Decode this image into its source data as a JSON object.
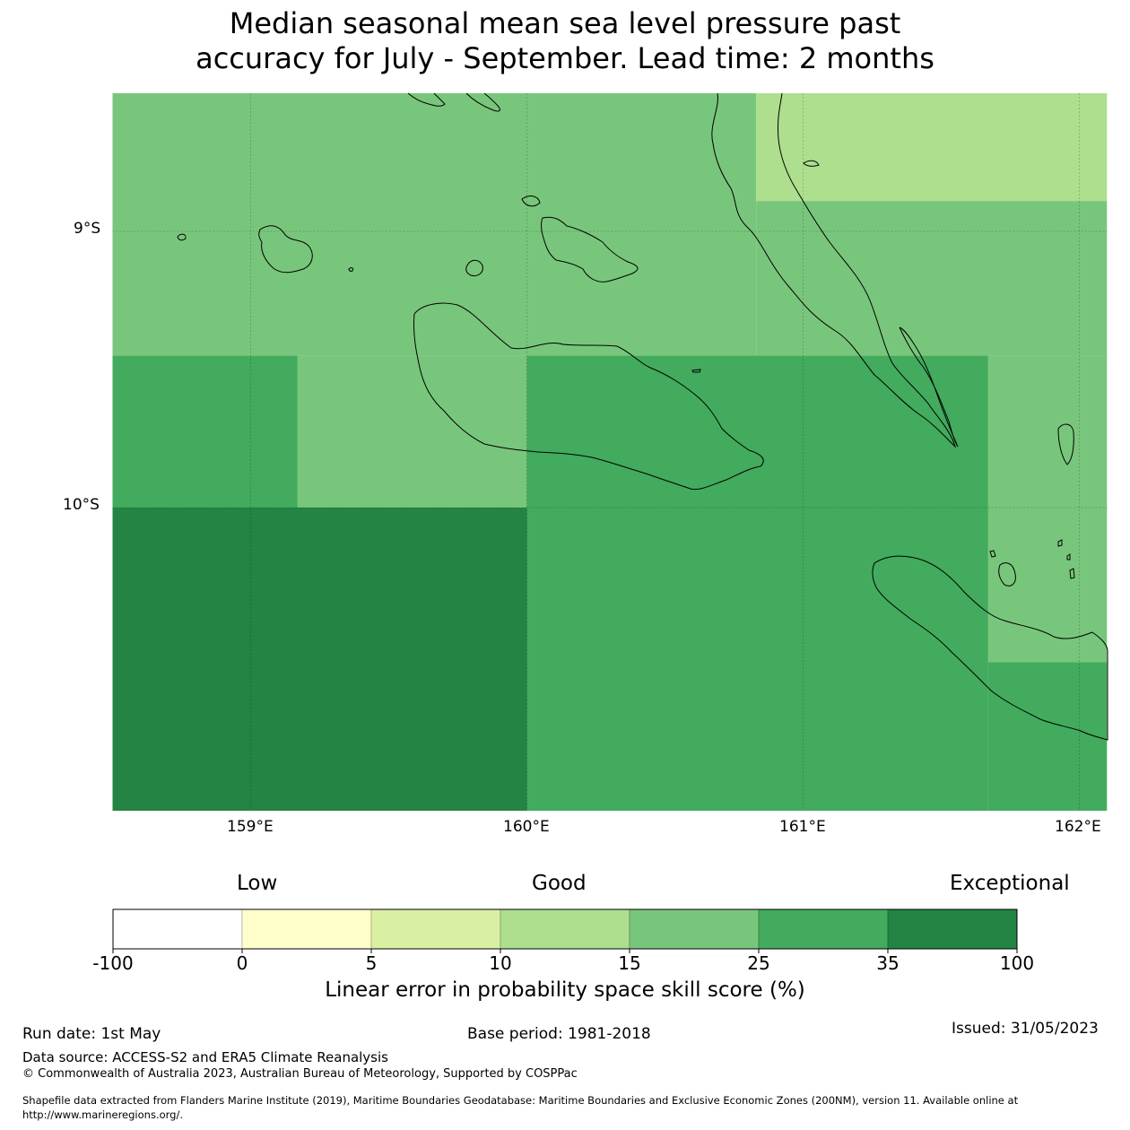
{
  "title": {
    "line1": "Median seasonal mean sea level pressure past",
    "line2": "accuracy for July - September. Lead time: 2 months"
  },
  "map": {
    "latitude_labels": [
      "9°S",
      "10°S"
    ],
    "longitude_labels": [
      "159°E",
      "160°E",
      "161°E",
      "162°E"
    ],
    "extent": {
      "lon_min": 158.5,
      "lon_max": 162.1,
      "lat_top": -8.5,
      "lat_bottom": -11.1
    },
    "gridlines": true,
    "skill_cells": [
      {
        "lon_range": [
          158.5,
          160.83
        ],
        "lat_range": [
          -8.5,
          -9.45
        ],
        "class": "15-25",
        "color": "#78c67b"
      },
      {
        "lon_range": [
          160.83,
          162.1
        ],
        "lat_range": [
          -8.5,
          -8.89
        ],
        "class": "10-15",
        "color": "#addf8e"
      },
      {
        "lon_range": [
          160.83,
          162.1
        ],
        "lat_range": [
          -8.89,
          -9.45
        ],
        "class": "15-25",
        "color": "#78c67b"
      },
      {
        "lon_range": [
          158.5,
          159.17
        ],
        "lat_range": [
          -9.45,
          -10.0
        ],
        "class": "25-35",
        "color": "#42ab5d"
      },
      {
        "lon_range": [
          159.17,
          160.0
        ],
        "lat_range": [
          -9.45,
          -10.0
        ],
        "class": "15-25",
        "color": "#78c67b"
      },
      {
        "lon_range": [
          160.0,
          161.67
        ],
        "lat_range": [
          -9.45,
          -10.0
        ],
        "class": "25-35",
        "color": "#42ab5d"
      },
      {
        "lon_range": [
          161.67,
          162.1
        ],
        "lat_range": [
          -9.45,
          -10.56
        ],
        "class": "15-25",
        "color": "#78c67b"
      },
      {
        "lon_range": [
          158.5,
          160.0
        ],
        "lat_range": [
          -10.0,
          -11.1
        ],
        "class": "35-100",
        "color": "#238444"
      },
      {
        "lon_range": [
          160.0,
          161.67
        ],
        "lat_range": [
          -10.0,
          -11.1
        ],
        "class": "25-35",
        "color": "#42ab5d"
      },
      {
        "lon_range": [
          161.67,
          162.1
        ],
        "lat_range": [
          -10.56,
          -11.1
        ],
        "class": "25-35",
        "color": "#42ab5d"
      }
    ]
  },
  "colorbar": {
    "categories": {
      "low": "Low",
      "good": "Good",
      "exceptional": "Exceptional"
    },
    "ticks": [
      "-100",
      "0",
      "5",
      "10",
      "15",
      "25",
      "35",
      "100"
    ],
    "colors": [
      "#ffffff",
      "#ffffcc",
      "#d9f0a3",
      "#addf8e",
      "#78c67b",
      "#42ab5d",
      "#238444"
    ],
    "label": "Linear error in probability space skill score (%)"
  },
  "footer": {
    "run_date": "Run date: 1st May",
    "base_period": "Base period: 1981-2018",
    "issued": "Issued: 31/05/2023",
    "data_source": "Data source: ACCESS-S2 and ERA5 Climate Reanalysis",
    "copyright": "© Commonwealth of Australia 2023, Australian Bureau of Meteorology, Supported by COSPPac",
    "shapefile_line1": "Shapefile data extracted from Flanders Marine Institute (2019), Maritime Boundaries Geodatabase: Maritime Boundaries and Exclusive Economic Zones (200NM), version 11. Available online at",
    "shapefile_line2": "http://www.marineregions.org/."
  }
}
